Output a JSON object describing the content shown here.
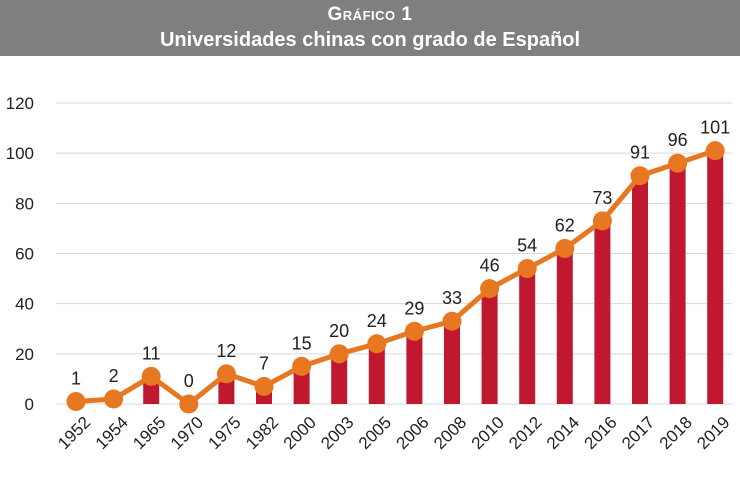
{
  "header": {
    "kicker": "Gráfico 1",
    "title": "Universidades chinas con grado de Español"
  },
  "colors": {
    "bar": "#c0182f",
    "line": "#e87722",
    "header_bg": "#7f7f7f",
    "grid": "#d9d9d9"
  },
  "chart_data": {
    "type": "bar+line",
    "categories": [
      "1952",
      "1954",
      "1965",
      "1970",
      "1975",
      "1982",
      "2000",
      "2003",
      "2005",
      "2006",
      "2008",
      "2010",
      "2012",
      "2014",
      "2016",
      "2017",
      "2018",
      "2019"
    ],
    "values": [
      1,
      2,
      11,
      0,
      12,
      7,
      15,
      20,
      24,
      29,
      33,
      46,
      54,
      62,
      73,
      91,
      96,
      101
    ],
    "ylim": [
      0,
      120
    ],
    "yticks": [
      0,
      20,
      40,
      60,
      80,
      100,
      120
    ],
    "grid": true,
    "legend": "none"
  }
}
